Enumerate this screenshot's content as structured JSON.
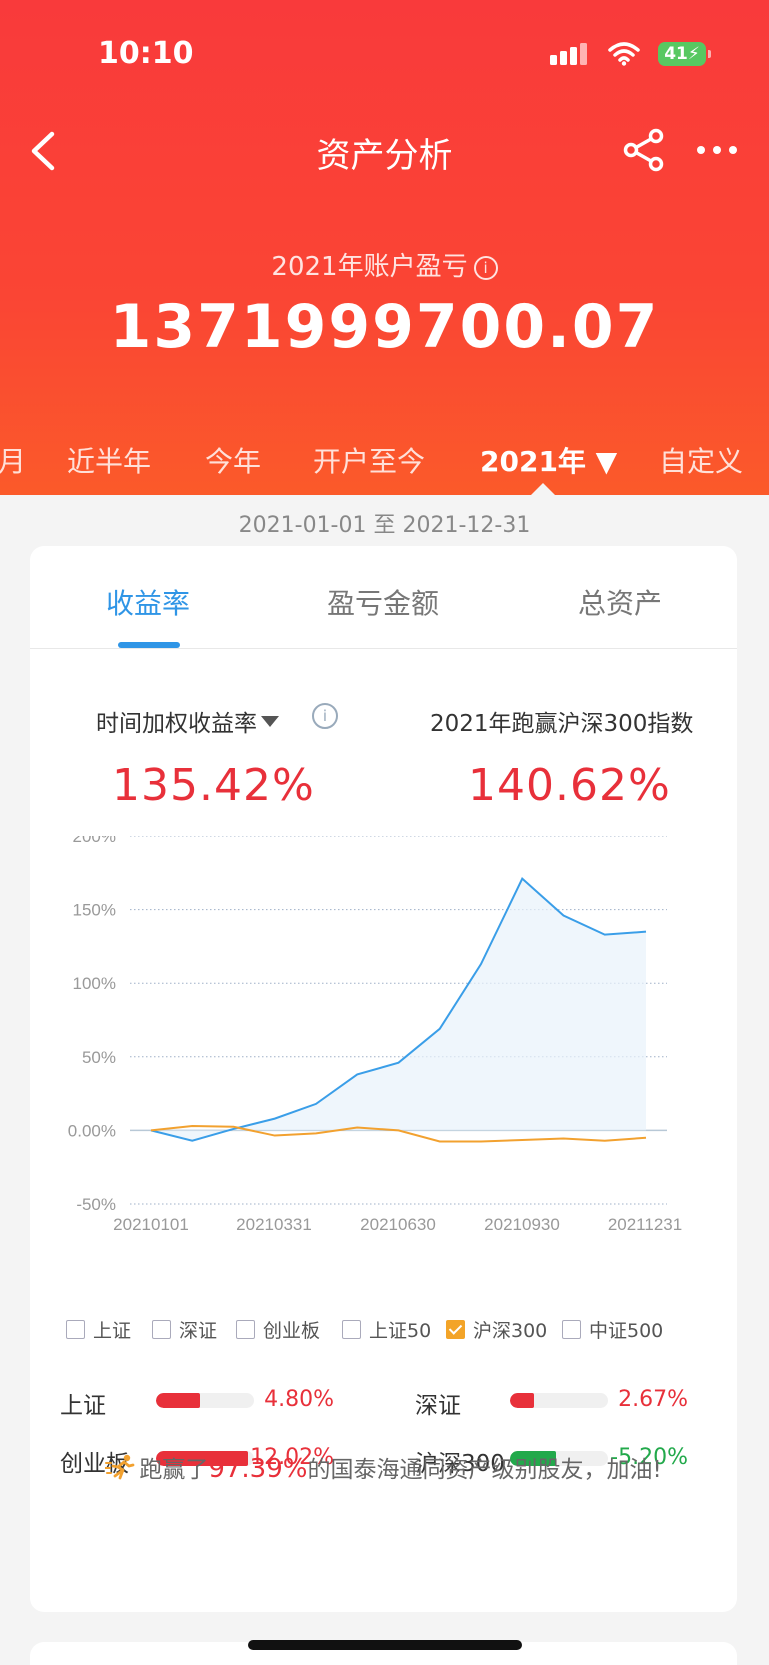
{
  "status_bar": {
    "time": "10:10",
    "battery": "41"
  },
  "nav": {
    "title": "资产分析"
  },
  "account": {
    "subtitle": "2021年账户盈亏",
    "info_glyph": "i",
    "amount": "1371999700.07"
  },
  "period_tabs": [
    {
      "label": "月"
    },
    {
      "label": "近半年"
    },
    {
      "label": "今年"
    },
    {
      "label": "开户至今"
    },
    {
      "label": "2021年 ▼"
    },
    {
      "label": "自定义"
    }
  ],
  "date_range": "2021-01-01 至 2021-12-31",
  "metric_tabs": [
    {
      "label": "收益率"
    },
    {
      "label": "盈亏金额"
    },
    {
      "label": "总资产"
    }
  ],
  "stats": {
    "twr_label": "时间加权收益率",
    "info_glyph": "i",
    "twr_value": "135.42%",
    "beat_label": "2021年跑赢沪深300指数",
    "beat_value": "140.62%"
  },
  "chart_data": {
    "type": "line",
    "y_ticks": [
      "200%",
      "150%",
      "100%",
      "50%",
      "0.00%",
      "-50%"
    ],
    "ylim": [
      -50,
      200
    ],
    "x_ticks": [
      "20210101",
      "20210331",
      "20210630",
      "20210930",
      "20211231"
    ],
    "grid": true,
    "colors": {
      "account": "#3a9ee8",
      "hs300": "#f2a12f"
    },
    "series": [
      {
        "key": "account",
        "values": [
          0,
          -7,
          1,
          8,
          18,
          38,
          46,
          69,
          113,
          171,
          146,
          133,
          135
        ]
      },
      {
        "key": "hs300",
        "values": [
          0,
          3,
          2.5,
          -3.5,
          -2,
          2,
          0,
          -7.5,
          -7.5,
          -6.5,
          -5.5,
          -7,
          -5
        ]
      }
    ]
  },
  "legend": [
    {
      "label": "上证",
      "checked": false
    },
    {
      "label": "深证",
      "checked": false
    },
    {
      "label": "创业板",
      "checked": false
    },
    {
      "label": "上证50",
      "checked": false
    },
    {
      "label": "沪深300",
      "checked": true
    },
    {
      "label": "中证500",
      "checked": false
    }
  ],
  "comparisons": [
    {
      "name": "上证",
      "value": "4.80%",
      "fill_pct": 45,
      "color": "#e8303a"
    },
    {
      "name": "深证",
      "value": "2.67%",
      "fill_pct": 24,
      "color": "#e8303a"
    },
    {
      "name": "创业板",
      "value": "12.02%",
      "fill_pct": 94,
      "color": "#e8303a"
    },
    {
      "name": "沪深300",
      "value": "-5.20%",
      "fill_pct": 47,
      "color": "#22a94b"
    }
  ],
  "beat_message": {
    "prefix": "跑赢了",
    "percent": "97.39%",
    "suffix": "的国泰海通同资产级别股友，加油!"
  }
}
